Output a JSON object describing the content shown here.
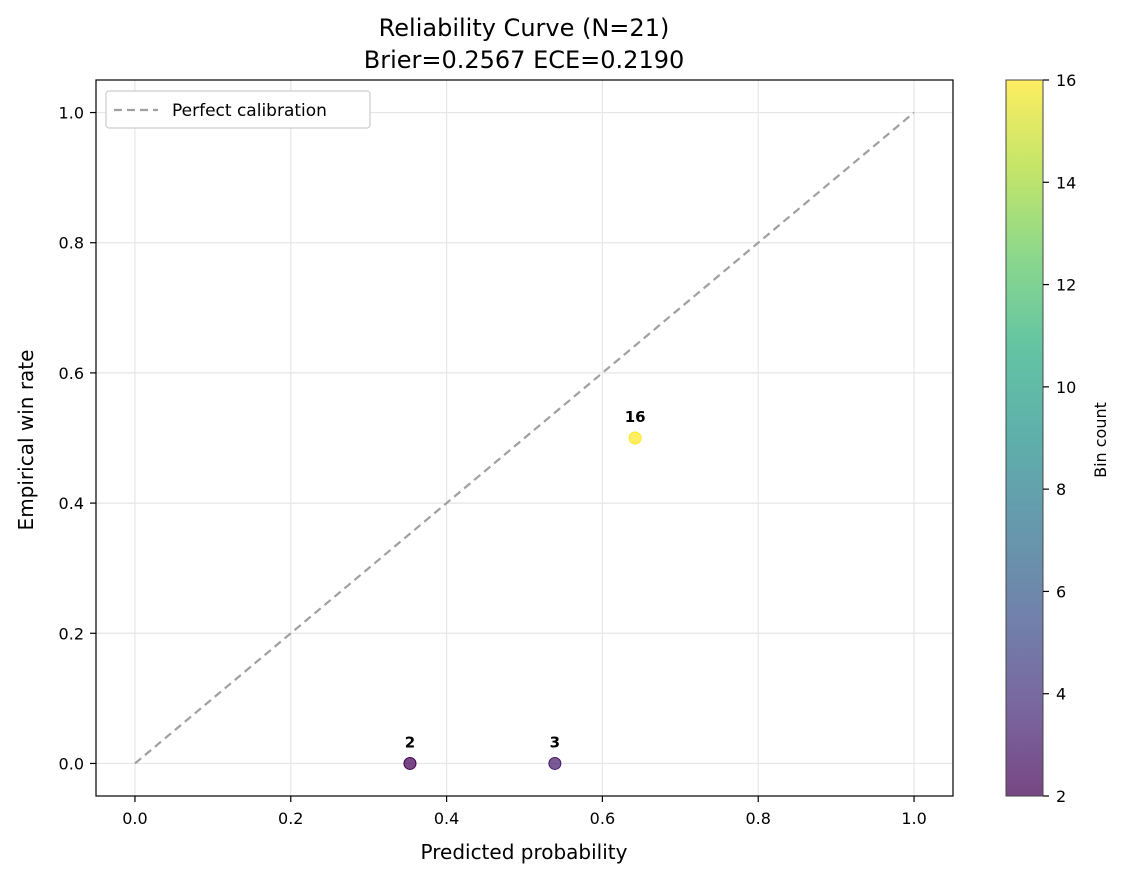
{
  "chart_data": {
    "type": "scatter",
    "title_line1": "Reliability Curve (N=21)",
    "title_line2": "Brier=0.2567  ECE=0.2190",
    "xlabel": "Predicted probability",
    "ylabel": "Empirical win rate",
    "xlim": [
      -0.05,
      1.05
    ],
    "ylim": [
      -0.05,
      1.05
    ],
    "xticks": [
      "0.0",
      "0.2",
      "0.4",
      "0.6",
      "0.8",
      "1.0"
    ],
    "yticks": [
      "0.0",
      "0.2",
      "0.4",
      "0.6",
      "0.8",
      "1.0"
    ],
    "grid": true,
    "legend": {
      "placement": "top-left",
      "entries": [
        "Perfect calibration"
      ]
    },
    "reference_line": {
      "name": "Perfect calibration",
      "x": [
        0,
        1
      ],
      "y": [
        0,
        1
      ],
      "style": "dashed",
      "color": "#a0a0a0"
    },
    "points": [
      {
        "x": 0.353,
        "y": 0.0,
        "count": 2,
        "label": "2"
      },
      {
        "x": 0.539,
        "y": 0.0,
        "count": 3,
        "label": "3"
      },
      {
        "x": 0.642,
        "y": 0.5,
        "count": 16,
        "label": "16"
      }
    ],
    "colorbar": {
      "label": "Bin count",
      "min": 2,
      "max": 16,
      "ticks": [
        "2",
        "4",
        "6",
        "8",
        "10",
        "12",
        "14",
        "16"
      ],
      "colormap": "viridis"
    }
  }
}
